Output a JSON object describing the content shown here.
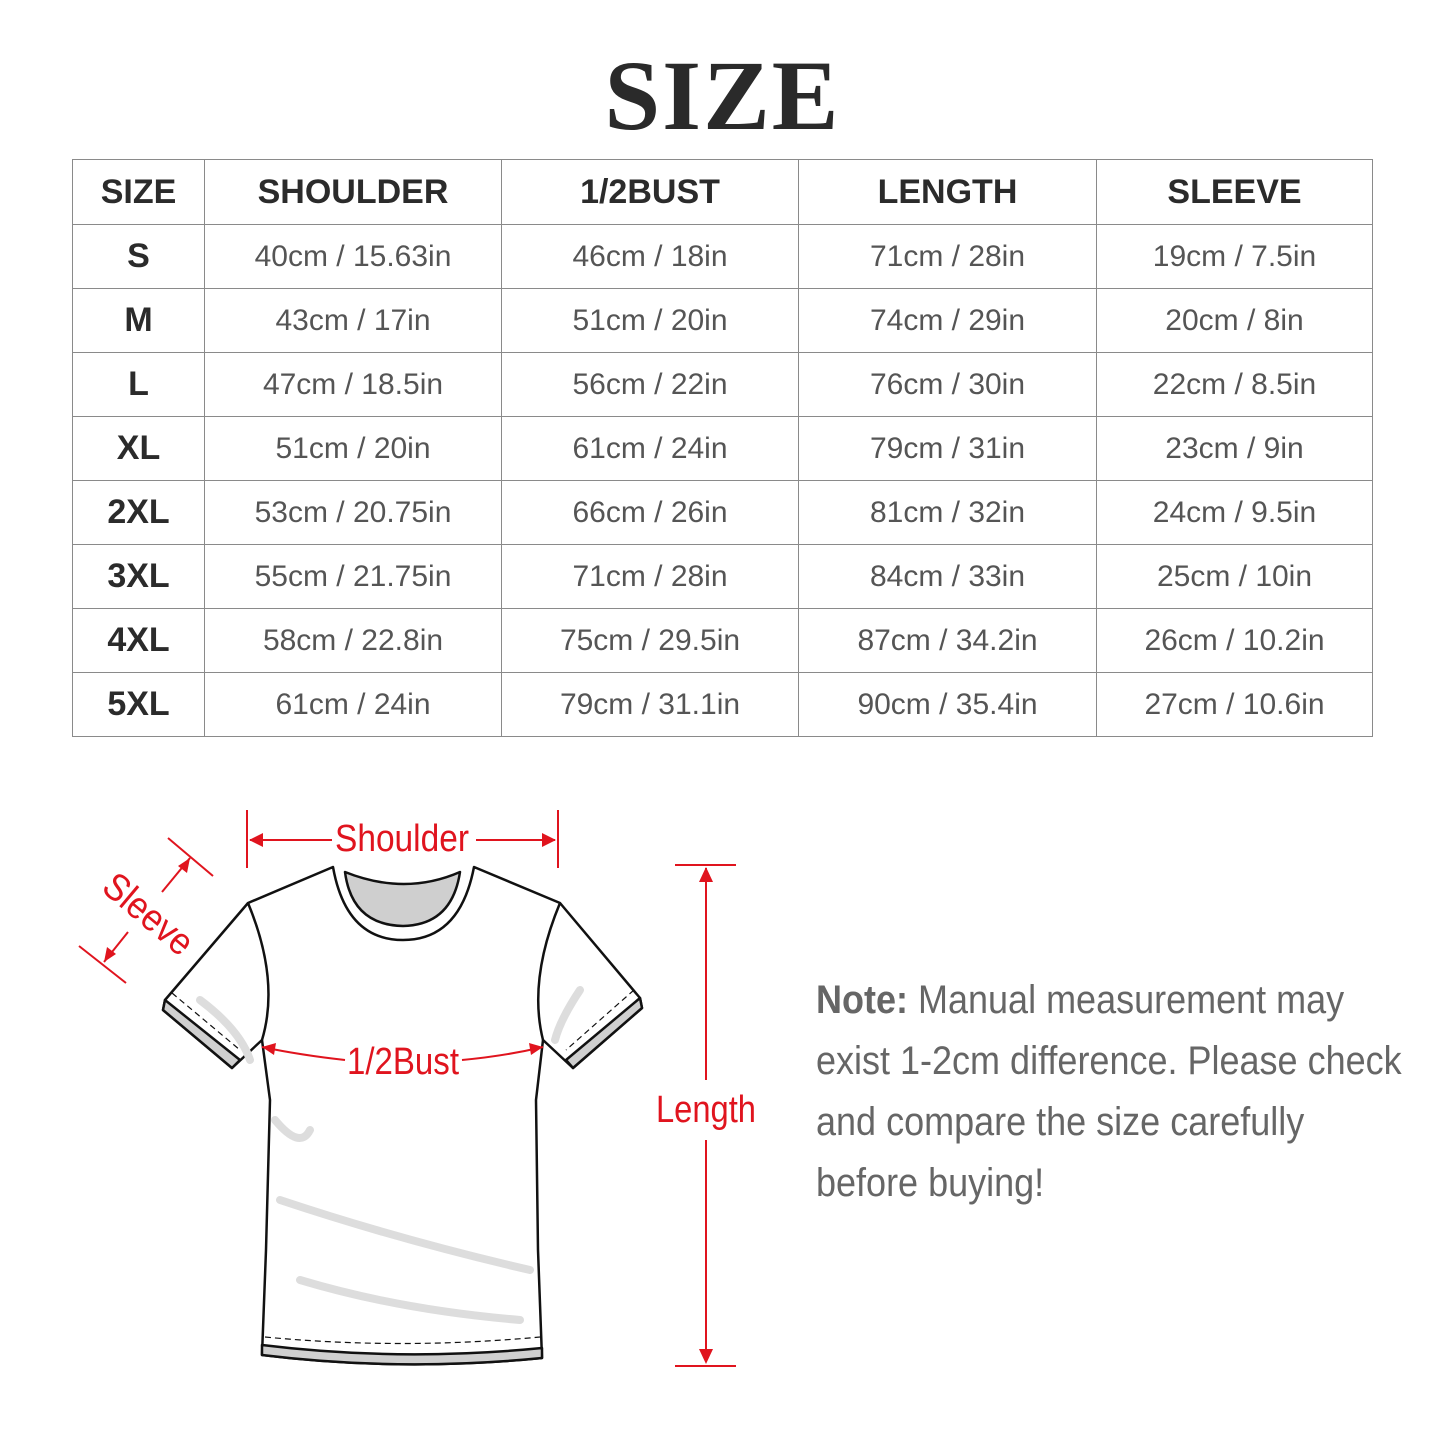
{
  "title": "SIZE",
  "table": {
    "headers": [
      "SIZE",
      "SHOULDER",
      "1/2BUST",
      "LENGTH",
      "SLEEVE"
    ],
    "rows": [
      [
        "S",
        "40cm / 15.63in",
        "46cm / 18in",
        "71cm / 28in",
        "19cm / 7.5in"
      ],
      [
        "M",
        "43cm / 17in",
        "51cm / 20in",
        "74cm / 29in",
        "20cm / 8in"
      ],
      [
        "L",
        "47cm / 18.5in",
        "56cm / 22in",
        "76cm / 30in",
        "22cm / 8.5in"
      ],
      [
        "XL",
        "51cm / 20in",
        "61cm / 24in",
        "79cm / 31in",
        "23cm / 9in"
      ],
      [
        "2XL",
        "53cm / 20.75in",
        "66cm / 26in",
        "81cm / 32in",
        "24cm / 9.5in"
      ],
      [
        "3XL",
        "55cm / 21.75in",
        "71cm / 28in",
        "84cm / 33in",
        "25cm / 10in"
      ],
      [
        "4XL",
        "58cm / 22.8in",
        "75cm / 29.5in",
        "87cm / 34.2in",
        "26cm / 10.2in"
      ],
      [
        "5XL",
        "61cm / 24in",
        "79cm / 31.1in",
        "90cm / 35.4in",
        "27cm / 10.6in"
      ]
    ]
  },
  "diagram": {
    "shoulder": "Shoulder",
    "sleeve": "Sleeve",
    "bust": "1/2Bust",
    "length": "Length",
    "accent": "#e0141e"
  },
  "note": {
    "label": "Note:",
    "text": " Manual measurement may exist 1-2cm difference. Please check and compare the size carefully before buying!"
  }
}
